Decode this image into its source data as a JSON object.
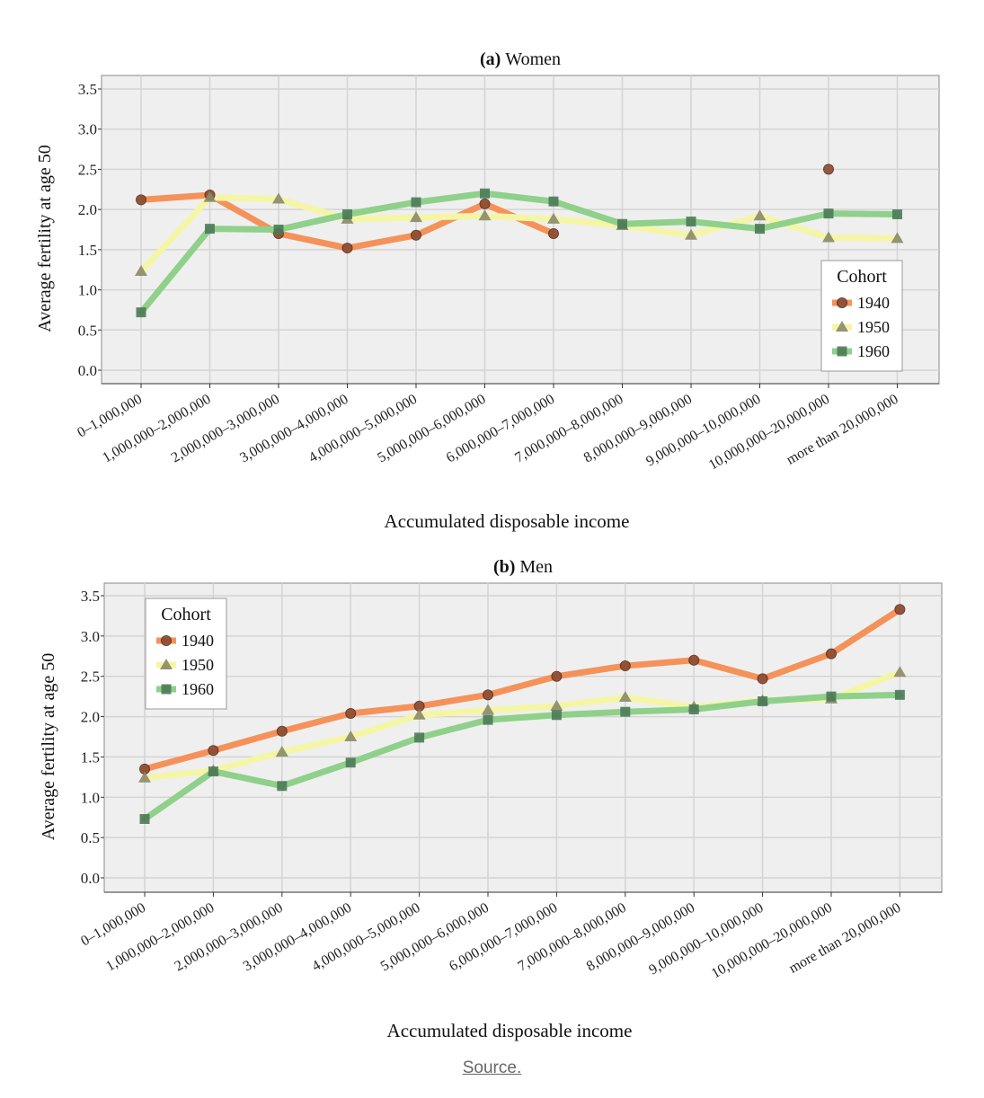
{
  "categories": [
    "0–1,000,000",
    "1,000,000–2,000,000",
    "2,000,000–3,000,000",
    "3,000,000–4,000,000",
    "4,000,000–5,000,000",
    "5,000,000–6,000,000",
    "6,000,000–7,000,000",
    "7,000,000–8,000,000",
    "8,000,000–9,000,000",
    "9,000,000–10,000,000",
    "10,000,000–20,000,000",
    "more than 20,000,000"
  ],
  "source_link": "Source.",
  "colors": {
    "1940_line": "#f4925a",
    "1940_marker": "#8b4a30",
    "1950_line": "#f4f6a6",
    "1950_marker": "#8a8a68",
    "1960_line": "#8fd08a",
    "1960_marker": "#4b7a56",
    "plot_bg": "#efefef",
    "grid": "#d4d4d4"
  },
  "chart_data": [
    {
      "type": "line",
      "title_prefix": "(a)",
      "title": "Women",
      "xlabel": "Accumulated disposable income",
      "ylabel": "Average fertility at age 50",
      "ylim": [
        0,
        3.5
      ],
      "yticks": [
        "0.0",
        "0.5",
        "1.0",
        "1.5",
        "2.0",
        "2.5",
        "3.0",
        "3.5"
      ],
      "grid": true,
      "legend": {
        "title": "Cohort",
        "placement": "right"
      },
      "series": [
        {
          "name": "1940",
          "marker": "circle",
          "values": [
            2.12,
            2.18,
            1.7,
            1.52,
            1.68,
            2.07,
            1.7,
            null,
            null,
            null,
            2.5,
            null
          ]
        },
        {
          "name": "1950",
          "marker": "triangle",
          "values": [
            1.23,
            2.15,
            2.13,
            1.88,
            1.9,
            1.92,
            1.88,
            1.8,
            1.68,
            1.92,
            1.65,
            1.64
          ]
        },
        {
          "name": "1960",
          "marker": "square",
          "values": [
            0.72,
            1.76,
            1.75,
            1.94,
            2.09,
            2.2,
            2.1,
            1.82,
            1.85,
            1.76,
            1.95,
            1.94
          ]
        }
      ]
    },
    {
      "type": "line",
      "title_prefix": "(b)",
      "title": "Men",
      "xlabel": "Accumulated disposable income",
      "ylabel": "Average fertility at age 50",
      "ylim": [
        0,
        3.5
      ],
      "yticks": [
        "0.0",
        "0.5",
        "1.0",
        "1.5",
        "2.0",
        "2.5",
        "3.0",
        "3.5"
      ],
      "grid": true,
      "legend": {
        "title": "Cohort",
        "placement": "top-left"
      },
      "series": [
        {
          "name": "1940",
          "marker": "circle",
          "values": [
            1.35,
            1.58,
            1.82,
            2.04,
            2.13,
            2.27,
            2.5,
            2.63,
            2.7,
            2.47,
            2.78,
            3.33
          ]
        },
        {
          "name": "1950",
          "marker": "triangle",
          "values": [
            1.24,
            1.33,
            1.56,
            1.75,
            2.02,
            2.08,
            2.13,
            2.24,
            2.12,
            2.2,
            2.22,
            2.55
          ]
        },
        {
          "name": "1960",
          "marker": "square",
          "values": [
            0.73,
            1.32,
            1.14,
            1.43,
            1.74,
            1.96,
            2.02,
            2.06,
            2.09,
            2.19,
            2.25,
            2.27
          ]
        }
      ]
    }
  ]
}
